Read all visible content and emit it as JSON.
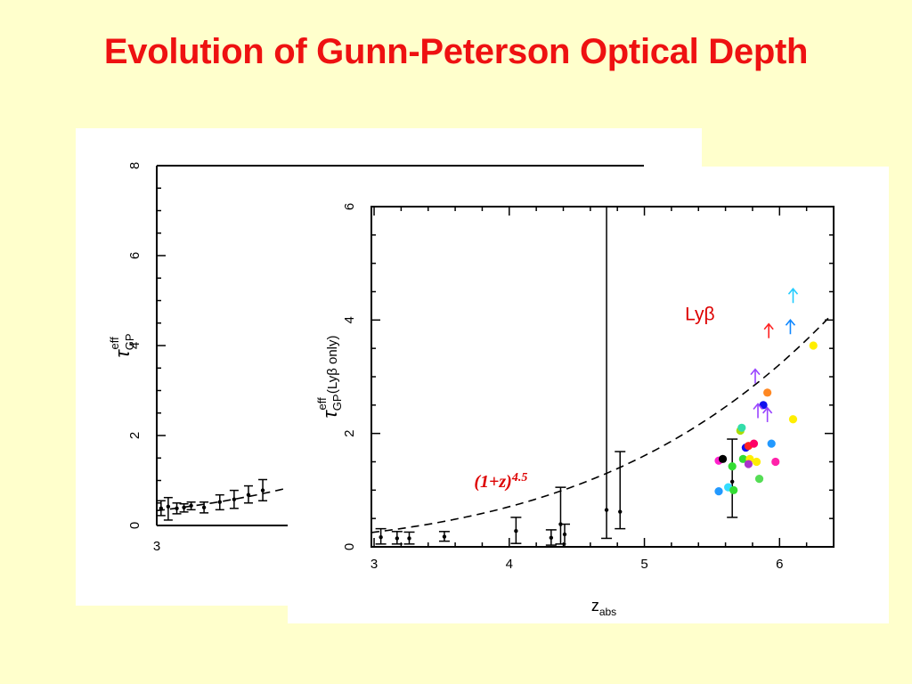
{
  "slide": {
    "title": "Evolution of Gunn-Peterson Optical Depth"
  },
  "colors": {
    "title": "#ee1111",
    "background": "#ffffcc",
    "panel": "#ffffff",
    "annotation": "#dd0000"
  },
  "chart_data": [
    {
      "id": "back",
      "type": "scatter",
      "title": "",
      "xlabel": "",
      "ylabel_main": "τ",
      "ylabel_sub": "GP",
      "ylabel_sup": "eff",
      "xlim": [
        3,
        6.4
      ],
      "ylim": [
        0,
        8
      ],
      "yticks": [
        0,
        2,
        4,
        6,
        8
      ],
      "xticks": [
        3
      ],
      "grid": false,
      "points": [
        {
          "x": 3.03,
          "y": 0.38,
          "lo": 0.22,
          "hi": 0.55
        },
        {
          "x": 3.08,
          "y": 0.42,
          "lo": 0.12,
          "hi": 0.62
        },
        {
          "x": 3.14,
          "y": 0.38,
          "lo": 0.26,
          "hi": 0.5
        },
        {
          "x": 3.19,
          "y": 0.4,
          "lo": 0.3,
          "hi": 0.48
        },
        {
          "x": 3.24,
          "y": 0.44,
          "lo": 0.35,
          "hi": 0.52
        },
        {
          "x": 3.33,
          "y": 0.4,
          "lo": 0.28,
          "hi": 0.52
        },
        {
          "x": 3.44,
          "y": 0.52,
          "lo": 0.35,
          "hi": 0.68
        },
        {
          "x": 3.54,
          "y": 0.58,
          "lo": 0.38,
          "hi": 0.78
        },
        {
          "x": 3.64,
          "y": 0.68,
          "lo": 0.5,
          "hi": 0.88
        },
        {
          "x": 3.74,
          "y": 0.78,
          "lo": 0.55,
          "hi": 1.02
        }
      ]
    },
    {
      "id": "front",
      "type": "scatter",
      "title": "",
      "xlabel_main": "z",
      "xlabel_sub": "abs",
      "ylabel_main": "τ",
      "ylabel_sub": "GP",
      "ylabel_sup": "eff",
      "ylabel_tail": "(Lyβ only)",
      "xlim": [
        2.98,
        6.4
      ],
      "ylim": [
        0,
        6
      ],
      "xticks": [
        3,
        4,
        5,
        6
      ],
      "yticks": [
        0,
        2,
        4,
        6
      ],
      "grid": false,
      "annotations": [
        "Lyβ",
        "(1+z)4.5"
      ],
      "fit_exponent": 4.5,
      "errorbar_points": [
        {
          "x": 3.05,
          "y": 0.17,
          "lo": 0.05,
          "hi": 0.32
        },
        {
          "x": 3.17,
          "y": 0.15,
          "lo": 0.05,
          "hi": 0.27
        },
        {
          "x": 3.26,
          "y": 0.15,
          "lo": 0.05,
          "hi": 0.26
        },
        {
          "x": 3.52,
          "y": 0.18,
          "lo": 0.1,
          "hi": 0.27
        },
        {
          "x": 4.05,
          "y": 0.28,
          "lo": 0.06,
          "hi": 0.52
        },
        {
          "x": 4.31,
          "y": 0.16,
          "lo": 0.03,
          "hi": 0.3
        },
        {
          "x": 4.38,
          "y": 0.4,
          "lo": 0.05,
          "hi": 1.05
        },
        {
          "x": 4.41,
          "y": 0.22,
          "lo": 0.0,
          "hi": 0.4
        },
        {
          "x": 4.72,
          "y": 0.65,
          "lo": 0.15,
          "hi": 6.0
        },
        {
          "x": 4.82,
          "y": 0.62,
          "lo": 0.32,
          "hi": 1.68
        },
        {
          "x": 5.65,
          "y": 1.15,
          "lo": 0.52,
          "hi": 1.9
        }
      ],
      "colored_points": [
        {
          "x": 5.55,
          "y": 1.52,
          "color": "#ff22cc"
        },
        {
          "x": 5.58,
          "y": 1.55,
          "color": "#000000"
        },
        {
          "x": 5.55,
          "y": 0.98,
          "color": "#2299ff"
        },
        {
          "x": 5.62,
          "y": 1.05,
          "color": "#33ddff"
        },
        {
          "x": 5.66,
          "y": 1.0,
          "color": "#33dd33"
        },
        {
          "x": 5.65,
          "y": 1.42,
          "color": "#33dd33"
        },
        {
          "x": 5.71,
          "y": 2.05,
          "color": "#aadd00"
        },
        {
          "x": 5.72,
          "y": 2.1,
          "color": "#33ddaa"
        },
        {
          "x": 5.73,
          "y": 1.55,
          "color": "#33dd33"
        },
        {
          "x": 5.75,
          "y": 1.75,
          "color": "#1111ee"
        },
        {
          "x": 5.77,
          "y": 1.78,
          "color": "#ff2222"
        },
        {
          "x": 5.78,
          "y": 1.55,
          "color": "#ffee00"
        },
        {
          "x": 5.77,
          "y": 1.46,
          "color": "#aa33cc"
        },
        {
          "x": 5.81,
          "y": 1.82,
          "color": "#ff0066"
        },
        {
          "x": 5.83,
          "y": 1.5,
          "color": "#ffee00"
        },
        {
          "x": 5.85,
          "y": 1.2,
          "color": "#55dd55"
        },
        {
          "x": 5.88,
          "y": 2.5,
          "color": "#1111ee"
        },
        {
          "x": 5.91,
          "y": 2.72,
          "color": "#ff8822"
        },
        {
          "x": 5.94,
          "y": 1.82,
          "color": "#2299ff"
        },
        {
          "x": 5.97,
          "y": 1.5,
          "color": "#ff22aa"
        },
        {
          "x": 6.1,
          "y": 2.25,
          "color": "#ffee00"
        },
        {
          "x": 6.25,
          "y": 3.55,
          "color": "#ffee00"
        }
      ],
      "lower_limits": [
        {
          "x": 6.1,
          "y": 4.3,
          "color": "#22ccff"
        },
        {
          "x": 6.08,
          "y": 3.75,
          "color": "#1188ff"
        },
        {
          "x": 5.92,
          "y": 3.68,
          "color": "#ff2222"
        },
        {
          "x": 5.82,
          "y": 2.88,
          "color": "#9944ff"
        },
        {
          "x": 5.84,
          "y": 2.27,
          "color": "#9944ff"
        },
        {
          "x": 5.91,
          "y": 2.2,
          "color": "#9944ff"
        }
      ]
    }
  ]
}
